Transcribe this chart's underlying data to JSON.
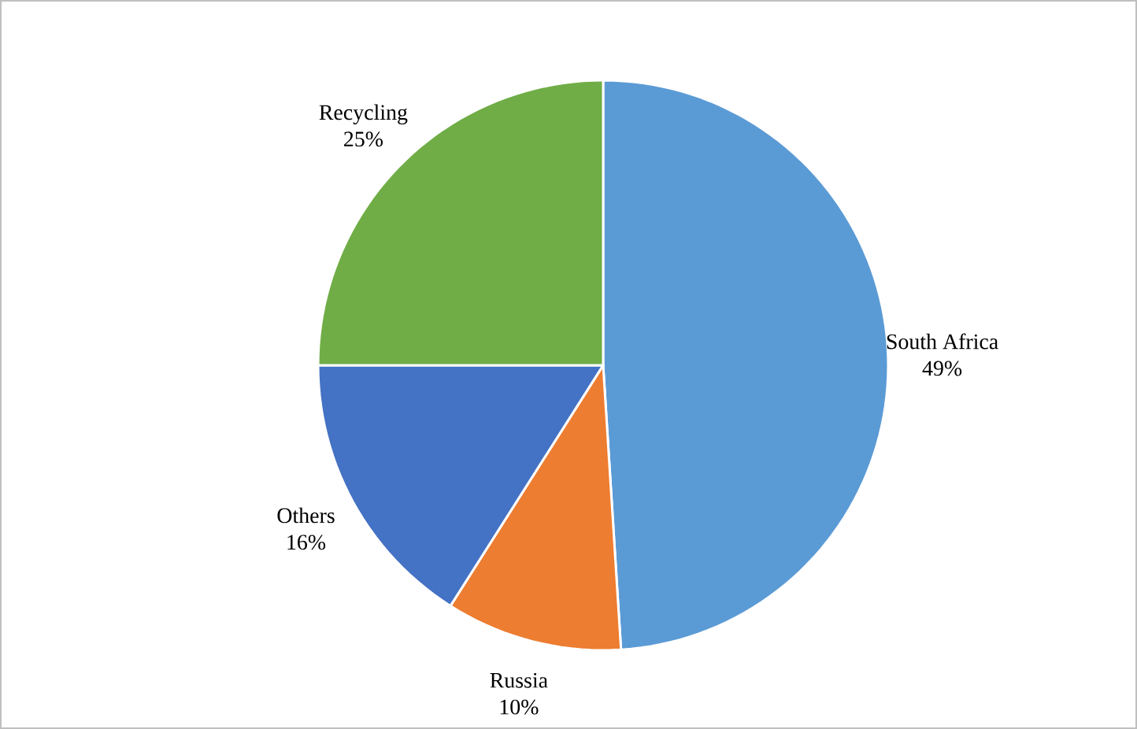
{
  "chart_data": {
    "type": "pie",
    "categories": [
      "South Africa",
      "Russia",
      "Others",
      "Recycling"
    ],
    "values": [
      49,
      10,
      16,
      25
    ],
    "value_labels": [
      "49%",
      "10%",
      "16%",
      "25%"
    ],
    "colors": [
      "#5b9bd5",
      "#ed7d31",
      "#4472c4",
      "#70ad47"
    ]
  }
}
